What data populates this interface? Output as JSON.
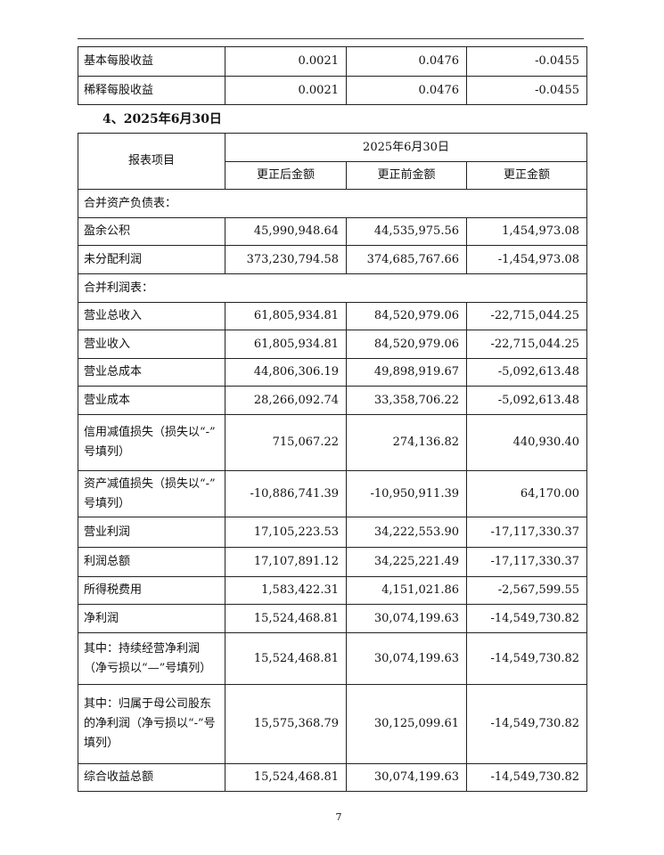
{
  "top_table": {
    "rows": [
      [
        "基本每股收益",
        "0.0021",
        "0.0476",
        "-0.0455"
      ],
      [
        "稀释每股收益",
        "0.0021",
        "0.0476",
        "-0.0455"
      ]
    ]
  },
  "section_title": "4、2025年6月30日",
  "table": {
    "header": {
      "item": "报表项目",
      "date": "2025年6月30日",
      "columns": [
        "更正后金额",
        "更正前金额",
        "更正金额"
      ]
    },
    "rows": [
      [
        "合并资产负债表："
      ],
      [
        "盈余公积",
        "45,990,948.64",
        "44,535,975.56",
        "1,454,973.08"
      ],
      [
        "未分配利润",
        "373,230,794.58",
        "374,685,767.66",
        "-1,454,973.08"
      ],
      [
        "合并利润表："
      ],
      [
        "营业总收入",
        "61,805,934.81",
        "84,520,979.06",
        "-22,715,044.25"
      ],
      [
        "营业收入",
        "61,805,934.81",
        "84,520,979.06",
        "-22,715,044.25"
      ],
      [
        "营业总成本",
        "44,806,306.19",
        "49,898,919.67",
        "-5,092,613.48"
      ],
      [
        "营业成本",
        "28,266,092.74",
        "33,358,706.22",
        "-5,092,613.48"
      ],
      [
        "信用减值损失（损失以“-”号填列）",
        "715,067.22",
        "274,136.82",
        "440,930.40"
      ],
      [
        "资产减值损失（损失以“-”号填列）",
        "-10,886,741.39",
        "-10,950,911.39",
        "64,170.00"
      ],
      [
        "营业利润",
        "17,105,223.53",
        "34,222,553.90",
        "-17,117,330.37"
      ],
      [
        "利润总额",
        "17,107,891.12",
        "34,225,221.49",
        "-17,117,330.37"
      ],
      [
        "所得税费用",
        "1,583,422.31",
        "4,151,021.86",
        "-2,567,599.55"
      ],
      [
        "净利润",
        "15,524,468.81",
        "30,074,199.63",
        "-14,549,730.82"
      ],
      [
        "其中：持续经营净利润（净亏损以“—”号填列）",
        "15,524,468.81",
        "30,074,199.63",
        "-14,549,730.82"
      ],
      [
        "其中：归属于母公司股东的净利润（净亏损以“-”号填列）",
        "15,575,368.79",
        "30,125,099.61",
        "-14,549,730.82"
      ],
      [
        "综合收益总额",
        "15,524,468.81",
        "30,074,199.63",
        "-14,549,730.82"
      ]
    ]
  },
  "footer": {
    "page_number": "7"
  }
}
